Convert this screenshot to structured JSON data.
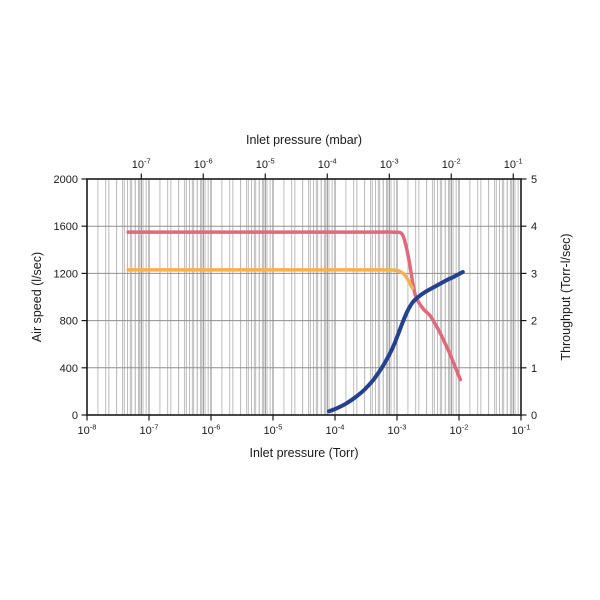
{
  "chart_data": {
    "type": "line",
    "x_scale": "log",
    "grid": "both-log-grids-on",
    "axes": {
      "bottom": {
        "label": "Inlet pressure (Torr)",
        "unit": "Torr",
        "tick_exponents": [
          -8,
          -7,
          -6,
          -5,
          -4,
          -3,
          -2,
          -1
        ],
        "min": 1e-08,
        "max": 0.1
      },
      "top": {
        "label": "Inlet pressure (mbar)",
        "unit": "mbar",
        "tick_exponents": [
          -7,
          -6,
          -5,
          -4,
          -3,
          -2,
          -1
        ],
        "mbar_per_torr": 1.33322
      },
      "left": {
        "label": "Air speed (l/sec)",
        "min": 0,
        "max": 2000,
        "ticks": [
          0,
          400,
          800,
          1200,
          1600,
          2000
        ]
      },
      "right": {
        "label": "Throughput (Torr-l/sec)",
        "min": 0,
        "max": 5,
        "ticks": [
          0,
          1,
          2,
          3,
          4,
          5
        ]
      }
    },
    "series": [
      {
        "name": "air-speed-curve-primary",
        "axis": "left",
        "color": "#e0697c",
        "width": 3.5,
        "points": [
          [
            4.6e-08,
            1550
          ],
          [
            2e-07,
            1550
          ],
          [
            1e-06,
            1550
          ],
          [
            1e-05,
            1550
          ],
          [
            0.0001,
            1550
          ],
          [
            0.0005,
            1550
          ],
          [
            0.0009,
            1549
          ],
          [
            0.0012,
            1535
          ],
          [
            0.0014,
            1430
          ],
          [
            0.0016,
            1280
          ],
          [
            0.0018,
            1115
          ],
          [
            0.002,
            1005
          ],
          [
            0.0023,
            945
          ],
          [
            0.0027,
            895
          ],
          [
            0.00305,
            868
          ],
          [
            0.0034,
            843
          ],
          [
            0.004,
            785
          ],
          [
            0.0048,
            710
          ],
          [
            0.0058,
            622
          ],
          [
            0.007,
            528
          ],
          [
            0.0085,
            420
          ],
          [
            0.0105,
            300
          ]
        ]
      },
      {
        "name": "air-speed-curve-secondary",
        "axis": "left",
        "color": "#f2b254",
        "width": 3.5,
        "points": [
          [
            4.6e-08,
            1230
          ],
          [
            2e-07,
            1230
          ],
          [
            1e-06,
            1230
          ],
          [
            1e-05,
            1230
          ],
          [
            0.0001,
            1230
          ],
          [
            0.0005,
            1230
          ],
          [
            0.00085,
            1229
          ],
          [
            0.00105,
            1222
          ],
          [
            0.00125,
            1200
          ],
          [
            0.00145,
            1160
          ],
          [
            0.00162,
            1115
          ],
          [
            0.00178,
            1075
          ]
        ]
      },
      {
        "name": "throughput-curve",
        "axis": "right",
        "color": "#24408e",
        "width": 4,
        "points": [
          [
            8e-05,
            0.08
          ],
          [
            0.00011,
            0.15
          ],
          [
            0.00015,
            0.24
          ],
          [
            0.00021,
            0.37
          ],
          [
            0.0003,
            0.54
          ],
          [
            0.00043,
            0.77
          ],
          [
            0.00062,
            1.08
          ],
          [
            0.00085,
            1.42
          ],
          [
            0.00105,
            1.72
          ],
          [
            0.00125,
            1.98
          ],
          [
            0.0015,
            2.22
          ],
          [
            0.0018,
            2.39
          ],
          [
            0.0022,
            2.5
          ],
          [
            0.0028,
            2.6
          ],
          [
            0.0036,
            2.68
          ],
          [
            0.0048,
            2.77
          ],
          [
            0.0064,
            2.86
          ],
          [
            0.0086,
            2.94
          ],
          [
            0.0115,
            3.03
          ]
        ]
      }
    ],
    "colors": {
      "grid_minor": "#bdbdbd",
      "grid_major": "#8f8f8f",
      "border": "#1a1a1a",
      "text": "#1a1a1a"
    }
  }
}
